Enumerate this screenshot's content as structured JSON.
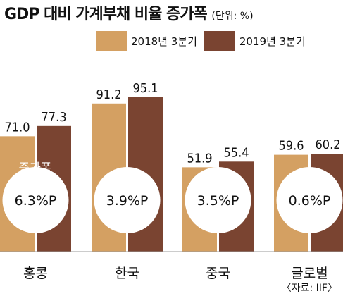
{
  "title": "GDP 대비 가계부채 비율 증가폭",
  "unit": "(단위: %)",
  "source": "〈자료: IIF〉",
  "increase_label": "증가폭",
  "colors": {
    "series_2018": "#D4A062",
    "series_2019": "#7A4431"
  },
  "chart_data": {
    "type": "bar",
    "title": "GDP 대비 가계부채 비율 증가폭",
    "unit": "%",
    "categories": [
      "홍콩",
      "한국",
      "중국",
      "글로벌"
    ],
    "series": [
      {
        "name": "2018년 3분기",
        "values": [
          71.0,
          91.2,
          51.9,
          59.6
        ],
        "labels": [
          "71.0",
          "91.2",
          "51.9",
          "59.6"
        ]
      },
      {
        "name": "2019년 3분기",
        "values": [
          77.3,
          95.1,
          55.4,
          60.2
        ],
        "labels": [
          "77.3",
          "95.1",
          "55.4",
          "60.2"
        ]
      }
    ],
    "increase": [
      "6.3%P",
      "3.9%P",
      "3.5%P",
      "0.6%P"
    ],
    "ylim": [
      0,
      100
    ],
    "grid": false,
    "legend": "top"
  }
}
